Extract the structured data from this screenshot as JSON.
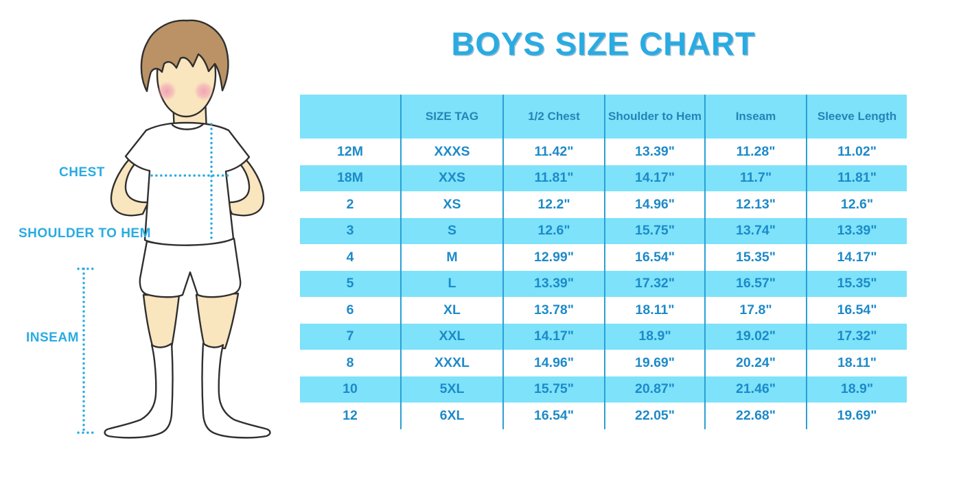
{
  "title": "BOYS SIZE CHART",
  "figure": {
    "name": "boy-measurement-illustration",
    "labels": {
      "chest": "CHEST",
      "shoulder_to_hem": "SHOULDER TO HEM",
      "inseam": "INSEAM"
    }
  },
  "colors": {
    "title_blue": "#29ABE2",
    "row_highlight": "#7DE2FA",
    "grid_line": "#2B9FD4",
    "header_text": "#2584B6",
    "cell_text": "#1D8AC8",
    "label_blue": "#29ABE2",
    "skin": "#F9E5BE",
    "hair": "#BA9266",
    "cheek_pink": "#F2A0B5",
    "outline": "#2F2F2F"
  },
  "chart_data": {
    "type": "table",
    "title": "BOYS SIZE CHART",
    "columns": [
      "",
      "SIZE TAG",
      "1/2 Chest",
      "Shoulder to Hem",
      "Inseam",
      "Sleeve Length"
    ],
    "rows": [
      [
        "12M",
        "XXXS",
        "11.42\"",
        "13.39\"",
        "11.28\"",
        "11.02\""
      ],
      [
        "18M",
        "XXS",
        "11.81\"",
        "14.17\"",
        "11.7\"",
        "11.81\""
      ],
      [
        "2",
        "XS",
        "12.2\"",
        "14.96\"",
        "12.13\"",
        "12.6\""
      ],
      [
        "3",
        "S",
        "12.6\"",
        "15.75\"",
        "13.74\"",
        "13.39\""
      ],
      [
        "4",
        "M",
        "12.99\"",
        "16.54\"",
        "15.35\"",
        "14.17\""
      ],
      [
        "5",
        "L",
        "13.39\"",
        "17.32\"",
        "16.57\"",
        "15.35\""
      ],
      [
        "6",
        "XL",
        "13.78\"",
        "18.11\"",
        "17.8\"",
        "16.54\""
      ],
      [
        "7",
        "XXL",
        "14.17\"",
        "18.9\"",
        "19.02\"",
        "17.32\""
      ],
      [
        "8",
        "XXXL",
        "14.96\"",
        "19.69\"",
        "20.24\"",
        "18.11\""
      ],
      [
        "10",
        "5XL",
        "15.75\"",
        "20.87\"",
        "21.46\"",
        "18.9\""
      ],
      [
        "12",
        "6XL",
        "16.54\"",
        "22.05\"",
        "22.68\"",
        "19.69\""
      ]
    ],
    "zebra": "header and every second data row highlighted light blue",
    "grid": "vertical column dividers only"
  }
}
